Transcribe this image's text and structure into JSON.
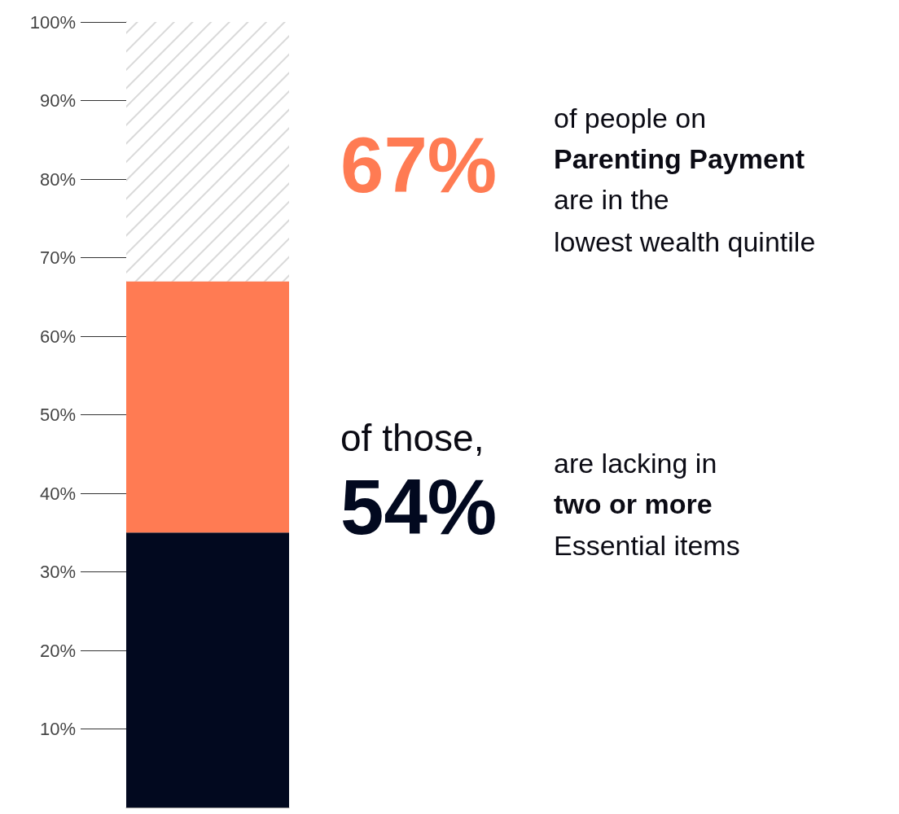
{
  "chart_data": {
    "type": "bar",
    "stacked": true,
    "categories": [
      null
    ],
    "series": [
      {
        "color": "#02091f",
        "values": [
          35
        ]
      },
      {
        "color": "#ff7b53",
        "values": [
          32
        ]
      },
      {
        "color": "#d9d9d9",
        "values": [
          33
        ]
      }
    ],
    "ylim": [
      0,
      100
    ],
    "yticks": [
      {
        "value": 10,
        "label": "10%"
      },
      {
        "value": 20,
        "label": "20%"
      },
      {
        "value": 30,
        "label": "30%"
      },
      {
        "value": 40,
        "label": "40%"
      },
      {
        "value": 50,
        "label": "50%"
      },
      {
        "value": 60,
        "label": "60%"
      },
      {
        "value": 70,
        "label": "70%"
      },
      {
        "value": 80,
        "label": "80%"
      },
      {
        "value": 90,
        "label": "90%"
      },
      {
        "value": 100,
        "label": "100%"
      }
    ],
    "annotations": [
      "67%",
      "of people on",
      "Parenting Payment",
      "are in the",
      "lowest wealth quintile",
      "of those,",
      "54%",
      "are lacking in",
      "two or more",
      "Essential items"
    ]
  }
}
